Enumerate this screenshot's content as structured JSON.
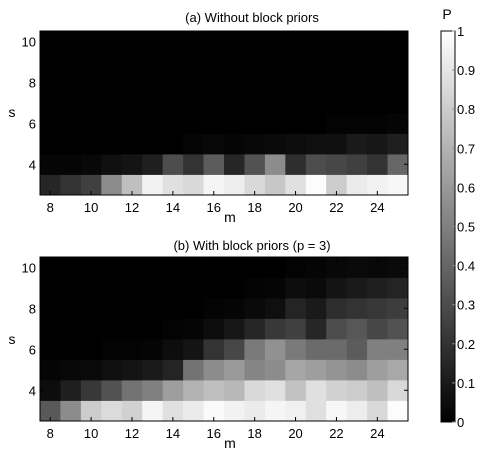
{
  "chart_data": [
    {
      "type": "heatmap",
      "title": "(a) Without block priors",
      "xlabel": "m",
      "ylabel": "s",
      "x": [
        8,
        9,
        10,
        11,
        12,
        13,
        14,
        15,
        16,
        17,
        18,
        19,
        20,
        21,
        22,
        23,
        24,
        25
      ],
      "y": [
        3,
        4,
        5,
        6,
        7,
        8,
        9,
        10
      ],
      "x_ticks": [
        "8",
        "10",
        "12",
        "14",
        "16",
        "18",
        "20",
        "22",
        "24"
      ],
      "y_ticks": [
        "4",
        "6",
        "8",
        "10"
      ],
      "zlim": [
        0,
        1
      ],
      "values": [
        [
          0.15,
          0.2,
          0.25,
          0.55,
          0.75,
          0.95,
          0.88,
          0.85,
          0.96,
          0.93,
          0.85,
          0.78,
          0.88,
          0.99,
          0.8,
          0.92,
          0.95,
          0.97
        ],
        [
          0.02,
          0.02,
          0.03,
          0.06,
          0.08,
          0.12,
          0.3,
          0.2,
          0.36,
          0.15,
          0.32,
          0.55,
          0.18,
          0.3,
          0.28,
          0.25,
          0.2,
          0.4
        ],
        [
          0.0,
          0.0,
          0.0,
          0.0,
          0.0,
          0.0,
          0.0,
          0.02,
          0.03,
          0.02,
          0.03,
          0.04,
          0.05,
          0.06,
          0.06,
          0.1,
          0.09,
          0.12
        ],
        [
          0.0,
          0.0,
          0.0,
          0.0,
          0.0,
          0.0,
          0.0,
          0.0,
          0.0,
          0.0,
          0.0,
          0.0,
          0.0,
          0.0,
          0.01,
          0.01,
          0.01,
          0.02
        ],
        [
          0.0,
          0.0,
          0.0,
          0.0,
          0.0,
          0.0,
          0.0,
          0.0,
          0.0,
          0.0,
          0.0,
          0.0,
          0.0,
          0.0,
          0.0,
          0.0,
          0.0,
          0.0
        ],
        [
          0.0,
          0.0,
          0.0,
          0.0,
          0.0,
          0.0,
          0.0,
          0.0,
          0.0,
          0.0,
          0.0,
          0.0,
          0.0,
          0.0,
          0.0,
          0.0,
          0.0,
          0.0
        ],
        [
          0.0,
          0.0,
          0.0,
          0.0,
          0.0,
          0.0,
          0.0,
          0.0,
          0.0,
          0.0,
          0.0,
          0.0,
          0.0,
          0.0,
          0.0,
          0.0,
          0.0,
          0.0
        ],
        [
          0.0,
          0.0,
          0.0,
          0.0,
          0.0,
          0.0,
          0.0,
          0.0,
          0.0,
          0.0,
          0.0,
          0.0,
          0.0,
          0.0,
          0.0,
          0.0,
          0.0,
          0.0
        ]
      ]
    },
    {
      "type": "heatmap",
      "title": "(b) With block priors (p = 3)",
      "xlabel": "m",
      "ylabel": "s",
      "x": [
        8,
        9,
        10,
        11,
        12,
        13,
        14,
        15,
        16,
        17,
        18,
        19,
        20,
        21,
        22,
        23,
        24,
        25
      ],
      "y": [
        3,
        4,
        5,
        6,
        7,
        8,
        9,
        10
      ],
      "x_ticks": [
        "8",
        "10",
        "12",
        "14",
        "16",
        "18",
        "20",
        "22",
        "24"
      ],
      "y_ticks": [
        "4",
        "6",
        "8",
        "10"
      ],
      "zlim": [
        0,
        1
      ],
      "values": [
        [
          0.35,
          0.55,
          0.8,
          0.86,
          0.82,
          0.96,
          0.88,
          0.92,
          0.98,
          0.95,
          0.92,
          0.96,
          0.94,
          0.88,
          0.97,
          0.93,
          0.85,
          0.99
        ],
        [
          0.05,
          0.12,
          0.22,
          0.32,
          0.45,
          0.5,
          0.62,
          0.7,
          0.75,
          0.72,
          0.85,
          0.88,
          0.76,
          0.88,
          0.82,
          0.8,
          0.75,
          0.85
        ],
        [
          0.02,
          0.03,
          0.04,
          0.06,
          0.08,
          0.1,
          0.14,
          0.45,
          0.55,
          0.6,
          0.52,
          0.55,
          0.65,
          0.62,
          0.58,
          0.55,
          0.62,
          0.66
        ],
        [
          0.0,
          0.0,
          0.0,
          0.01,
          0.01,
          0.02,
          0.05,
          0.08,
          0.2,
          0.28,
          0.48,
          0.57,
          0.48,
          0.42,
          0.42,
          0.36,
          0.5,
          0.5
        ],
        [
          0.0,
          0.0,
          0.0,
          0.0,
          0.0,
          0.0,
          0.01,
          0.02,
          0.05,
          0.09,
          0.15,
          0.22,
          0.25,
          0.15,
          0.3,
          0.34,
          0.28,
          0.32
        ],
        [
          0.0,
          0.0,
          0.0,
          0.0,
          0.0,
          0.0,
          0.0,
          0.0,
          0.01,
          0.02,
          0.04,
          0.06,
          0.14,
          0.1,
          0.18,
          0.2,
          0.22,
          0.24
        ],
        [
          0.0,
          0.0,
          0.0,
          0.0,
          0.0,
          0.0,
          0.0,
          0.0,
          0.0,
          0.0,
          0.01,
          0.02,
          0.05,
          0.04,
          0.08,
          0.1,
          0.12,
          0.14
        ],
        [
          0.0,
          0.0,
          0.0,
          0.0,
          0.0,
          0.0,
          0.0,
          0.0,
          0.0,
          0.0,
          0.0,
          0.0,
          0.01,
          0.02,
          0.03,
          0.04,
          0.03,
          0.04
        ]
      ]
    }
  ],
  "colorbar": {
    "label": "P",
    "ticks": [
      "0",
      "0.1",
      "0.2",
      "0.3",
      "0.4",
      "0.5",
      "0.6",
      "0.7",
      "0.8",
      "0.9",
      "1"
    ],
    "range": [
      0,
      1
    ],
    "colormap": "gray"
  }
}
